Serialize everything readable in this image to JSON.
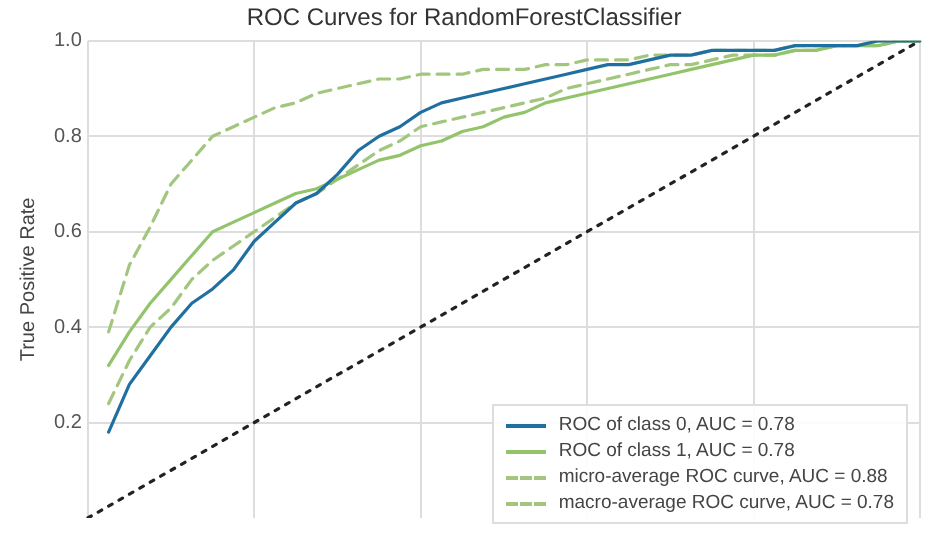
{
  "chart_data": {
    "type": "line",
    "title": "ROC Curves for RandomForestClassifier",
    "ylabel": "True Positive Rate",
    "categories": [
      null,
      null,
      null,
      null,
      null,
      null,
      null,
      null,
      null,
      null,
      null,
      null,
      null,
      null,
      null,
      null,
      null,
      null,
      null,
      null,
      null,
      null,
      null,
      null,
      null,
      null,
      null,
      null,
      null,
      null,
      null,
      null,
      null,
      null,
      null,
      null,
      null,
      null,
      null,
      null,
      null
    ],
    "ylim": [
      0,
      1
    ],
    "yticks": [
      0.2,
      0.4,
      0.6,
      0.8,
      {
        "value": 1,
        "label": "1.0"
      }
    ],
    "tick_labels": "y",
    "grid": true,
    "legend": "bottom right",
    "marker": "none",
    "series": [
      {
        "name": "ROC of class 0, AUC = 0.78",
        "color": "#1f6fa0",
        "line_style": "solid",
        "values": [
          null,
          0.18,
          0.28,
          0.34,
          0.4,
          0.45,
          0.48,
          0.52,
          0.58,
          0.62,
          0.66,
          0.68,
          0.72,
          0.77,
          0.8,
          0.82,
          0.85,
          0.87,
          0.88,
          0.89,
          0.9,
          0.91,
          0.92,
          0.93,
          0.94,
          0.95,
          0.95,
          0.96,
          0.97,
          0.97,
          0.98,
          0.98,
          0.98,
          0.98,
          0.99,
          0.99,
          0.99,
          0.99,
          1,
          1,
          1
        ]
      },
      {
        "name": "ROC of class 1, AUC = 0.78",
        "color": "#93c46c",
        "line_style": "solid",
        "values": [
          null,
          0.32,
          0.39,
          0.45,
          0.5,
          0.55,
          0.6,
          0.62,
          0.64,
          0.66,
          0.68,
          0.69,
          0.71,
          0.73,
          0.75,
          0.76,
          0.78,
          0.79,
          0.81,
          0.82,
          0.84,
          0.85,
          0.87,
          0.88,
          0.89,
          0.9,
          0.91,
          0.92,
          0.93,
          0.94,
          0.95,
          0.96,
          0.97,
          0.97,
          0.98,
          0.98,
          0.99,
          0.99,
          0.99,
          1,
          1
        ]
      },
      {
        "name": "micro-average ROC curve, AUC = 0.88",
        "color": "#a2c67e",
        "line_style": "dashed",
        "values": [
          null,
          0.39,
          0.53,
          0.61,
          0.7,
          0.75,
          0.8,
          0.82,
          0.84,
          0.86,
          0.87,
          0.89,
          0.9,
          0.91,
          0.92,
          0.92,
          0.93,
          0.93,
          0.93,
          0.94,
          0.94,
          0.94,
          0.95,
          0.95,
          0.96,
          0.96,
          0.96,
          0.97,
          0.97,
          0.97,
          0.98,
          0.98,
          0.98,
          0.98,
          0.99,
          0.99,
          0.99,
          0.99,
          1,
          1,
          1
        ]
      },
      {
        "name": "macro-average ROC curve, AUC = 0.78",
        "color": "#a2c67e",
        "line_style": "dashed",
        "values": [
          null,
          0.24,
          0.33,
          0.4,
          0.44,
          0.5,
          0.54,
          0.57,
          0.6,
          0.63,
          0.66,
          0.68,
          0.71,
          0.74,
          0.77,
          0.79,
          0.82,
          0.83,
          0.84,
          0.85,
          0.86,
          0.87,
          0.88,
          0.9,
          0.91,
          0.92,
          0.93,
          0.94,
          0.95,
          0.95,
          0.96,
          0.97,
          0.97,
          0.97,
          0.98,
          0.98,
          0.99,
          0.99,
          0.99,
          1,
          1
        ]
      },
      {
        "color": "#222222",
        "line_style": "dotted",
        "values": [
          0,
          0.025,
          0.05,
          0.075,
          0.1,
          0.125,
          0.15,
          0.175,
          0.2,
          0.225,
          0.25,
          0.275,
          0.3,
          0.325,
          0.35,
          0.375,
          0.4,
          0.425,
          0.45,
          0.475,
          0.5,
          0.525,
          0.55,
          0.575,
          0.6,
          0.625,
          0.65,
          0.675,
          0.7,
          0.725,
          0.75,
          0.775,
          0.8,
          0.825,
          0.85,
          0.875,
          0.9,
          0.925,
          0.95,
          0.975,
          1
        ]
      }
    ]
  }
}
